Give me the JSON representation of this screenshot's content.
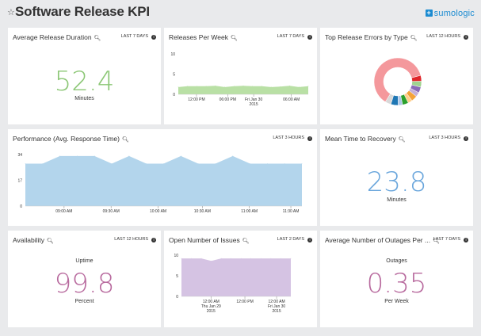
{
  "header": {
    "title": "Software Release KPI",
    "star_icon": "star-outline-icon",
    "logo_text": "sumologic",
    "brand_color": "#1b8bd1"
  },
  "panels": {
    "avg_release_duration": {
      "title": "Average Release Duration",
      "range": "LAST 7 DAYS",
      "value": "52.4",
      "unit": "Minutes",
      "color": "#8cc776"
    },
    "releases_per_week": {
      "title": "Releases Per Week",
      "range": "LAST 7 DAYS"
    },
    "top_release_errors": {
      "title": "Top Release Errors by Type",
      "range": "LAST 12 HOURS"
    },
    "performance": {
      "title": "Performance (Avg. Response Time)",
      "range": "LAST 3 HOURS"
    },
    "mttr": {
      "title": "Mean Time to Recovery",
      "range": "LAST 3 HOURS",
      "value": "23.8",
      "unit": "Minutes",
      "color": "#6aa6dc"
    },
    "availability": {
      "title": "Availability",
      "range": "LAST 12 HOURS",
      "label": "Uptime",
      "value": "99.8",
      "unit": "Percent",
      "color": "#b86a9e"
    },
    "open_issues": {
      "title": "Open Number of Issues",
      "range": "LAST 2 DAYS"
    },
    "avg_outages": {
      "title": "Average Number of Outages Per ...",
      "range": "LAST 7 DAYS",
      "label": "Outages",
      "value": "0.35",
      "unit": "Per Week",
      "color": "#b86a9e"
    }
  },
  "chart_data": [
    {
      "id": "releases_per_week",
      "type": "area",
      "yticks": [
        "10",
        "5",
        "0"
      ],
      "ylim": [
        0,
        10
      ],
      "x": [
        0,
        1,
        2,
        3,
        4,
        5,
        6,
        7,
        8,
        9,
        10,
        11,
        12,
        13,
        14
      ],
      "values": [
        1.8,
        2.0,
        2.0,
        2.0,
        2.1,
        1.8,
        2.0,
        2.1,
        2.0,
        2.0,
        1.8,
        1.9,
        2.1,
        1.8,
        2.0
      ],
      "xticks": [
        "12:00 PM",
        "06:00 PM",
        "Fri Jan 30\n2015",
        "06:00 AM"
      ],
      "color": "#b9e0a5"
    },
    {
      "id": "top_release_errors",
      "type": "pie",
      "style": "donut",
      "slices": [
        {
          "value": 62,
          "color": "#f4989c"
        },
        {
          "value": 4,
          "color": "#e0252a"
        },
        {
          "value": 4,
          "color": "#9fd38f"
        },
        {
          "value": 4,
          "color": "#8a6ab8"
        },
        {
          "value": 3,
          "color": "#c5b0d8"
        },
        {
          "value": 4,
          "color": "#f4a33a"
        },
        {
          "value": 3,
          "color": "#ffcf8c"
        },
        {
          "value": 4,
          "color": "#2ca02c"
        },
        {
          "value": 3,
          "color": "#aec7e8"
        },
        {
          "value": 5,
          "color": "#1f77b4"
        },
        {
          "value": 4,
          "color": "#d8d8d8"
        }
      ]
    },
    {
      "id": "performance",
      "type": "area",
      "yticks": [
        "34",
        "17",
        "0"
      ],
      "ylim": [
        0,
        34
      ],
      "x": [
        0,
        1,
        2,
        3,
        4,
        5,
        6,
        7,
        8,
        9,
        10,
        11,
        12,
        13,
        14,
        15,
        16
      ],
      "values": [
        28,
        28,
        33,
        33,
        33,
        28,
        33,
        28,
        28,
        33,
        28,
        28,
        33,
        28,
        28,
        28,
        28
      ],
      "xticks": [
        "09:00 AM",
        "09:30 AM",
        "10:00 AM",
        "10:30 AM",
        "11:00 AM",
        "11:30 AM"
      ],
      "color": "#b3d5ec"
    },
    {
      "id": "open_issues",
      "type": "area",
      "yticks": [
        "10",
        "5",
        "0"
      ],
      "ylim": [
        0,
        10
      ],
      "x": [
        0,
        1,
        2,
        3,
        4,
        5,
        6,
        7,
        8,
        9,
        10,
        11
      ],
      "values": [
        9.2,
        9.2,
        9.2,
        8.6,
        9.2,
        9.2,
        9.2,
        9.2,
        9.2,
        9.2,
        9.2,
        9.2
      ],
      "xticks": [
        "12:00 AM\nThu Jan 29\n2015",
        "12:00 PM",
        "12:00 AM\nFri Jan 30\n2015"
      ],
      "color": "#d5c3e3"
    }
  ]
}
